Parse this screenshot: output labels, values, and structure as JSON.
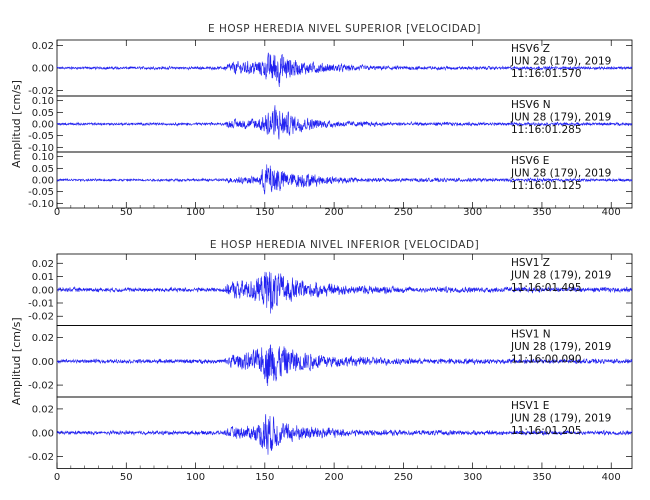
{
  "chart_data": [
    {
      "type": "line",
      "title": "E HOSP HEREDIA NIVEL SUPERIOR [VELOCIDAD]",
      "ylabel": "Amplitud [cm/s]",
      "xlim": [
        0,
        415
      ],
      "x_ticks": [
        "0",
        "50",
        "100",
        "150",
        "200",
        "250",
        "300",
        "350",
        "400"
      ],
      "panels": [
        {
          "name": "HSV6 Z",
          "annotation": [
            "HSV6    Z",
            "JUN 28 (179), 2019",
            "11:16:01.570"
          ],
          "ylim": [
            -0.025,
            0.025
          ],
          "y_ticks": [
            {
              "v": 0.02,
              "t": "0.02"
            },
            {
              "v": 0.0,
              "t": "0.00"
            },
            {
              "v": -0.02,
              "t": "-0.02"
            }
          ],
          "peak": 0.022,
          "noise": 0.0008,
          "envelope": [
            [
              0,
              0.04
            ],
            [
              120,
              0.05
            ],
            [
              125,
              0.3
            ],
            [
              140,
              0.35
            ],
            [
              150,
              0.5
            ],
            [
              157,
              1.0
            ],
            [
              162,
              0.8
            ],
            [
              175,
              0.35
            ],
            [
              200,
              0.2
            ],
            [
              230,
              0.1
            ],
            [
              300,
              0.06
            ],
            [
              415,
              0.05
            ]
          ]
        },
        {
          "name": "HSV6 N",
          "annotation": [
            "HSV6    N",
            "JUN 28 (179), 2019",
            "11:16:01.285"
          ],
          "ylim": [
            -0.12,
            0.12
          ],
          "y_ticks": [
            {
              "v": 0.1,
              "t": "0.10"
            },
            {
              "v": 0.05,
              "t": "0.05"
            },
            {
              "v": 0.0,
              "t": "0.00"
            },
            {
              "v": -0.05,
              "t": "-0.05"
            },
            {
              "v": -0.1,
              "t": "-0.10"
            }
          ],
          "peak": 0.11,
          "noise": 0.003,
          "envelope": [
            [
              0,
              0.04
            ],
            [
              120,
              0.05
            ],
            [
              125,
              0.2
            ],
            [
              140,
              0.25
            ],
            [
              150,
              0.45
            ],
            [
              156,
              1.0
            ],
            [
              165,
              0.6
            ],
            [
              180,
              0.3
            ],
            [
              200,
              0.15
            ],
            [
              240,
              0.08
            ],
            [
              415,
              0.05
            ]
          ]
        },
        {
          "name": "HSV6 E",
          "annotation": [
            "HSV6    E",
            "JUN 28 (179), 2019",
            "11:16:01.125"
          ],
          "ylim": [
            -0.12,
            0.12
          ],
          "y_ticks": [
            {
              "v": 0.1,
              "t": "0.10"
            },
            {
              "v": 0.05,
              "t": "0.05"
            },
            {
              "v": 0.0,
              "t": "0.00"
            },
            {
              "v": -0.05,
              "t": "-0.05"
            },
            {
              "v": -0.1,
              "t": "-0.10"
            }
          ],
          "peak": 0.105,
          "noise": 0.003,
          "envelope": [
            [
              0,
              0.04
            ],
            [
              120,
              0.05
            ],
            [
              125,
              0.15
            ],
            [
              145,
              0.2
            ],
            [
              152,
              1.0
            ],
            [
              160,
              0.7
            ],
            [
              168,
              0.35
            ],
            [
              178,
              0.4
            ],
            [
              190,
              0.25
            ],
            [
              220,
              0.1
            ],
            [
              415,
              0.05
            ]
          ]
        }
      ]
    },
    {
      "type": "line",
      "title": "E HOSP HEREDIA NIVEL INFERIOR [VELOCIDAD]",
      "ylabel": "Amplitud [cm/s]",
      "xlim": [
        0,
        415
      ],
      "x_ticks": [
        "0",
        "50",
        "100",
        "150",
        "200",
        "250",
        "300",
        "350",
        "400"
      ],
      "panels": [
        {
          "name": "HSV1 Z",
          "annotation": [
            "HSV1    Z",
            "JUN 28 (179), 2019",
            "11:16:01.495"
          ],
          "ylim": [
            -0.027,
            0.027
          ],
          "y_ticks": [
            {
              "v": 0.02,
              "t": "0.02"
            },
            {
              "v": 0.01,
              "t": "0.01"
            },
            {
              "v": 0.0,
              "t": "0.00"
            },
            {
              "v": -0.01,
              "t": "-0.01"
            },
            {
              "v": -0.02,
              "t": "-0.02"
            }
          ],
          "peak": 0.025,
          "noise": 0.0008,
          "envelope": [
            [
              0,
              0.06
            ],
            [
              120,
              0.07
            ],
            [
              125,
              0.3
            ],
            [
              140,
              0.4
            ],
            [
              148,
              0.6
            ],
            [
              153,
              1.0
            ],
            [
              160,
              0.6
            ],
            [
              175,
              0.35
            ],
            [
              200,
              0.2
            ],
            [
              250,
              0.1
            ],
            [
              415,
              0.07
            ]
          ]
        },
        {
          "name": "HSV1 N",
          "annotation": [
            "HSV1    N",
            "JUN 28 (179), 2019",
            "11:16:00.090"
          ],
          "ylim": [
            -0.03,
            0.03
          ],
          "y_ticks": [
            {
              "v": 0.02,
              "t": "0.02"
            },
            {
              "v": 0.0,
              "t": "0.00"
            },
            {
              "v": -0.02,
              "t": "-0.02"
            }
          ],
          "peak": 0.028,
          "noise": 0.0009,
          "envelope": [
            [
              0,
              0.05
            ],
            [
              120,
              0.06
            ],
            [
              125,
              0.25
            ],
            [
              140,
              0.35
            ],
            [
              148,
              0.55
            ],
            [
              153,
              1.0
            ],
            [
              160,
              0.7
            ],
            [
              175,
              0.4
            ],
            [
              200,
              0.2
            ],
            [
              250,
              0.1
            ],
            [
              415,
              0.06
            ]
          ]
        },
        {
          "name": "HSV1 E",
          "annotation": [
            "HSV1    E",
            "JUN 28 (179), 2019",
            "11:16:01.205"
          ],
          "ylim": [
            -0.03,
            0.03
          ],
          "y_ticks": [
            {
              "v": 0.02,
              "t": "0.02"
            },
            {
              "v": 0.0,
              "t": "0.00"
            },
            {
              "v": -0.02,
              "t": "-0.02"
            }
          ],
          "peak": 0.028,
          "noise": 0.0008,
          "envelope": [
            [
              0,
              0.05
            ],
            [
              120,
              0.06
            ],
            [
              125,
              0.2
            ],
            [
              145,
              0.3
            ],
            [
              150,
              1.0
            ],
            [
              157,
              0.6
            ],
            [
              165,
              0.35
            ],
            [
              185,
              0.25
            ],
            [
              210,
              0.12
            ],
            [
              260,
              0.08
            ],
            [
              415,
              0.06
            ]
          ]
        }
      ]
    }
  ]
}
